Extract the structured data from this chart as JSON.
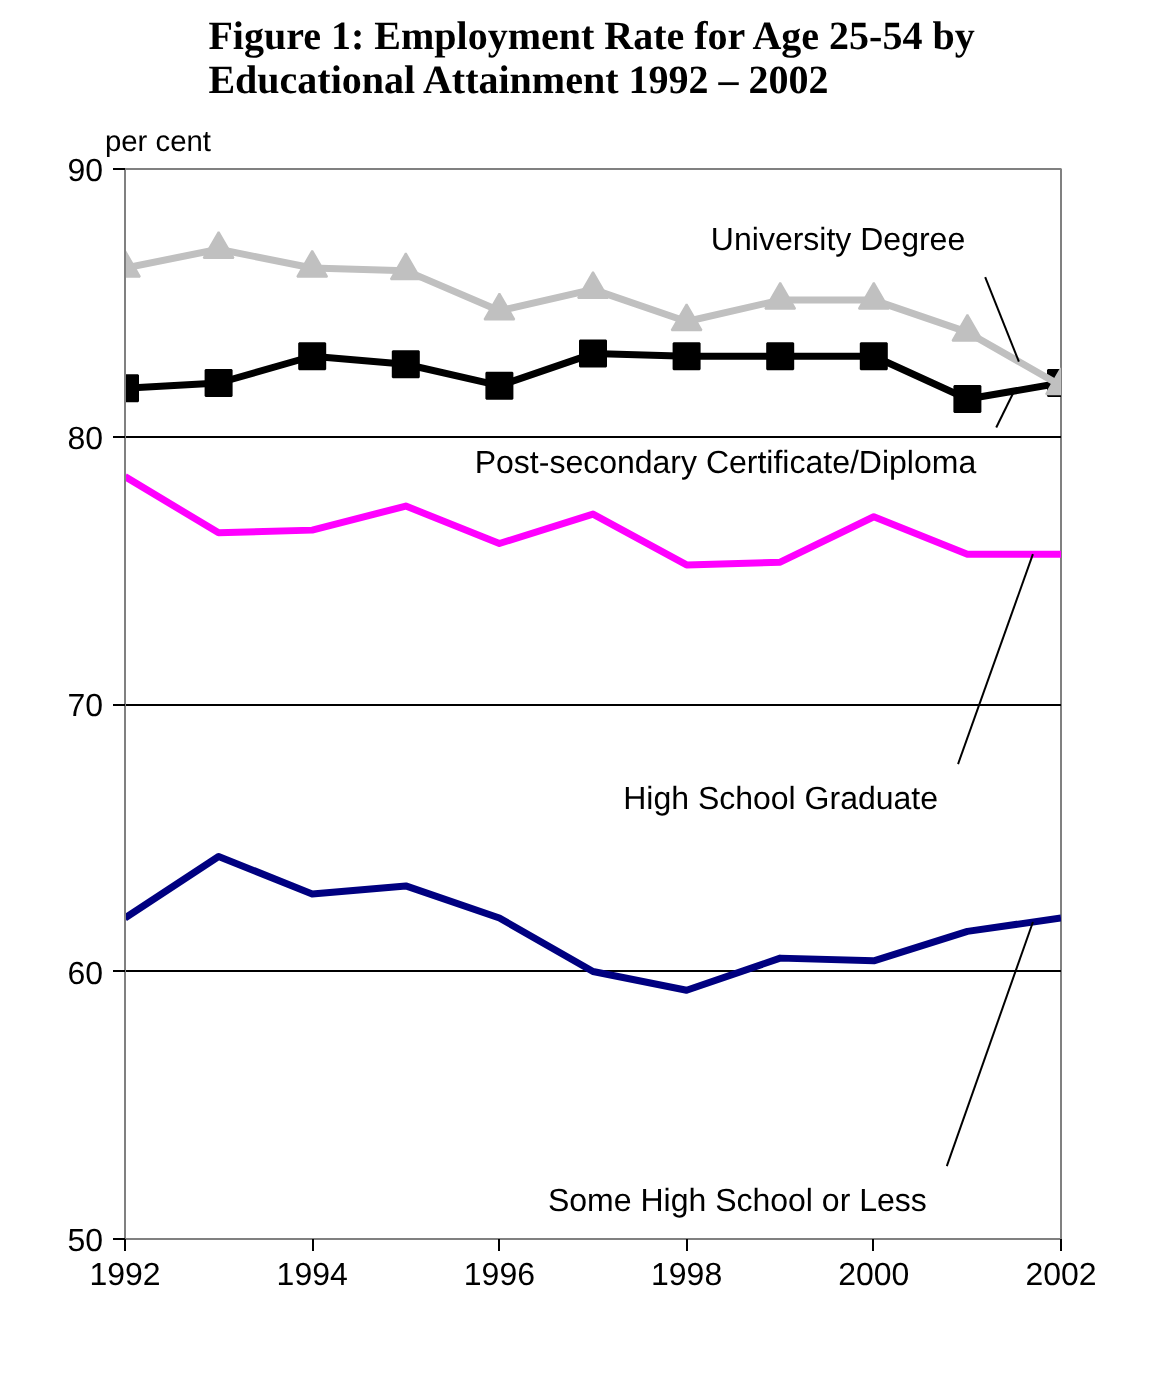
{
  "chart_data": {
    "type": "line",
    "title": "Figure 1: Employment Rate for Age 25-54 by\nEducational Attainment 1992 – 2002",
    "ylabel": "per cent",
    "x": [
      1992,
      1993,
      1994,
      1995,
      1996,
      1997,
      1998,
      1999,
      2000,
      2001,
      2002
    ],
    "series": [
      {
        "name": "University Degree",
        "color": "#c0c0c0",
        "marker": "triangle",
        "values": [
          86.3,
          87.0,
          86.3,
          86.2,
          84.7,
          85.5,
          84.3,
          85.1,
          85.1,
          83.9,
          81.9
        ]
      },
      {
        "name": "Post-secondary Certificate/Diploma",
        "color": "#000000",
        "marker": "square",
        "values": [
          81.8,
          82.0,
          83.0,
          82.7,
          81.9,
          83.1,
          83.0,
          83.0,
          83.0,
          81.4,
          82.0
        ]
      },
      {
        "name": "High School Graduate",
        "color": "#ff00ff",
        "values": [
          78.5,
          76.4,
          76.5,
          77.4,
          76.0,
          77.1,
          75.2,
          75.3,
          77.0,
          75.6,
          75.6
        ]
      },
      {
        "name": "Some High School or Less",
        "color": "#000080",
        "values": [
          62.0,
          64.3,
          62.9,
          63.2,
          62.0,
          60.0,
          59.3,
          60.5,
          60.4,
          61.5,
          62.0
        ]
      }
    ],
    "xlim": [
      1992,
      2002
    ],
    "xticks": [
      1992,
      1994,
      1996,
      1998,
      2000,
      2002
    ],
    "ylim": [
      50,
      90
    ],
    "yticks": [
      50,
      60,
      70,
      80,
      90
    ],
    "grid": "y"
  }
}
